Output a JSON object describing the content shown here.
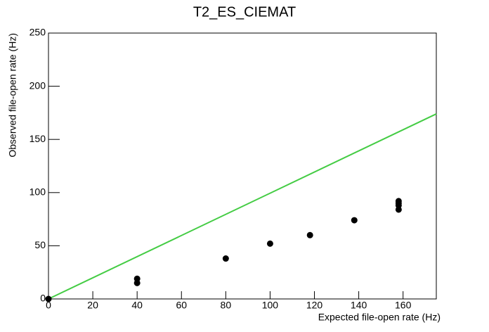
{
  "chart_data": {
    "type": "scatter",
    "title": "T2_ES_CIEMAT",
    "x_label": "Expected file-open rate (Hz)",
    "y_label": "Observed file-open rate (Hz)",
    "xlim": [
      0,
      175
    ],
    "ylim": [
      0,
      250
    ],
    "xticks": [
      0,
      20,
      40,
      60,
      80,
      100,
      120,
      140,
      160
    ],
    "yticks": [
      0,
      50,
      100,
      150,
      200,
      250
    ],
    "grid": false,
    "series": [
      {
        "style": "line",
        "color": "#44cc44",
        "x": [
          0,
          175
        ],
        "values": [
          0,
          174
        ]
      },
      {
        "style": "markers",
        "color": "#000000",
        "x": [
          0,
          40,
          40,
          80,
          100,
          118,
          138,
          158,
          158,
          158,
          158
        ],
        "values": [
          0,
          19,
          15,
          38,
          52,
          60,
          74,
          92,
          90,
          88,
          84
        ]
      }
    ]
  }
}
